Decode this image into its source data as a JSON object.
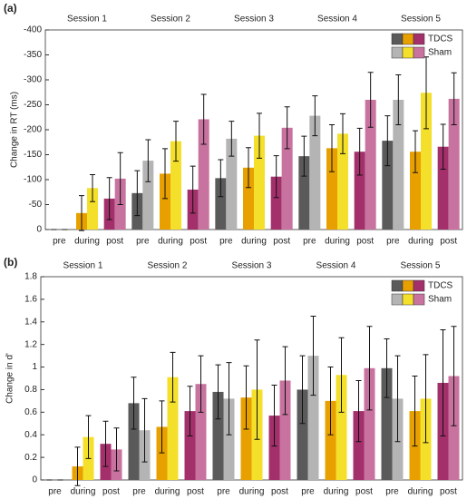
{
  "chart_data": [
    {
      "type": "bar",
      "panel_label": "(a)",
      "y_label": "Change in RT (ms)",
      "groups": [
        "Session 1",
        "Session 2",
        "Session 3",
        "Session 4",
        "Session 5"
      ],
      "categories": [
        "pre",
        "during",
        "post"
      ],
      "ylim": [
        0,
        -400
      ],
      "yticks": [
        0,
        -50,
        -100,
        -150,
        -200,
        -250,
        -300,
        -350,
        -400
      ],
      "legend": "upper right",
      "series": [
        {
          "name": "TDCS",
          "colors": [
            "#5a5a5a",
            "#e8a000",
            "#a3306b"
          ],
          "values": [
            [
              0,
              -33,
              -62
            ],
            [
              -73,
              -112,
              -80
            ],
            [
              -103,
              -124,
              -106
            ],
            [
              -147,
              -163,
              -156
            ],
            [
              -178,
              -156,
              -166
            ]
          ],
          "errors": [
            [
              0,
              35,
              42
            ],
            [
              45,
              50,
              47
            ],
            [
              37,
              40,
              42
            ],
            [
              40,
              47,
              47
            ],
            [
              50,
              42,
              45
            ]
          ]
        },
        {
          "name": "Sham",
          "colors": [
            "#b4b4b4",
            "#f4df2a",
            "#c8739f"
          ],
          "values": [
            [
              0,
              -83,
              -102
            ],
            [
              -138,
              -177,
              -221
            ],
            [
              -182,
              -188,
              -204
            ],
            [
              -228,
              -192,
              -260
            ],
            [
              -260,
              -274,
              -262
            ]
          ],
          "errors": [
            [
              0,
              27,
              52
            ],
            [
              42,
              40,
              50
            ],
            [
              35,
              45,
              42
            ],
            [
              40,
              40,
              55
            ],
            [
              50,
              72,
              52
            ]
          ]
        }
      ]
    },
    {
      "type": "bar",
      "panel_label": "(b)",
      "y_label": "Change in d'",
      "groups": [
        "Session 1",
        "Session 2",
        "Session 3",
        "Session 4",
        "Session 5"
      ],
      "categories": [
        "pre",
        "during",
        "post"
      ],
      "ylim": [
        0,
        1.8
      ],
      "yticks": [
        0,
        0.2,
        0.4,
        0.6,
        0.8,
        1,
        1.2,
        1.4,
        1.6,
        1.8
      ],
      "legend": "upper right",
      "series": [
        {
          "name": "TDCS",
          "colors": [
            "#5a5a5a",
            "#e8a000",
            "#a3306b"
          ],
          "values": [
            [
              0,
              0.12,
              0.32
            ],
            [
              0.68,
              0.47,
              0.61
            ],
            [
              0.78,
              0.73,
              0.57
            ],
            [
              0.8,
              0.7,
              0.61
            ],
            [
              0.99,
              0.61,
              0.86
            ]
          ],
          "errors": [
            [
              0,
              0.17,
              0.2
            ],
            [
              0.23,
              0.23,
              0.22
            ],
            [
              0.24,
              0.28,
              0.27
            ],
            [
              0.3,
              0.3,
              0.27
            ],
            [
              0.26,
              0.31,
              0.47
            ]
          ]
        },
        {
          "name": "Sham",
          "colors": [
            "#b4b4b4",
            "#f4df2a",
            "#c8739f"
          ],
          "values": [
            [
              0,
              0.38,
              0.27
            ],
            [
              0.44,
              0.91,
              0.85
            ],
            [
              0.72,
              0.8,
              0.88
            ],
            [
              1.1,
              0.93,
              0.99
            ],
            [
              0.72,
              0.72,
              0.92
            ]
          ],
          "errors": [
            [
              0,
              0.19,
              0.19
            ],
            [
              0.28,
              0.22,
              0.25
            ],
            [
              0.32,
              0.44,
              0.3
            ],
            [
              0.35,
              0.33,
              0.37
            ],
            [
              0.38,
              0.39,
              0.44
            ]
          ]
        }
      ]
    }
  ]
}
